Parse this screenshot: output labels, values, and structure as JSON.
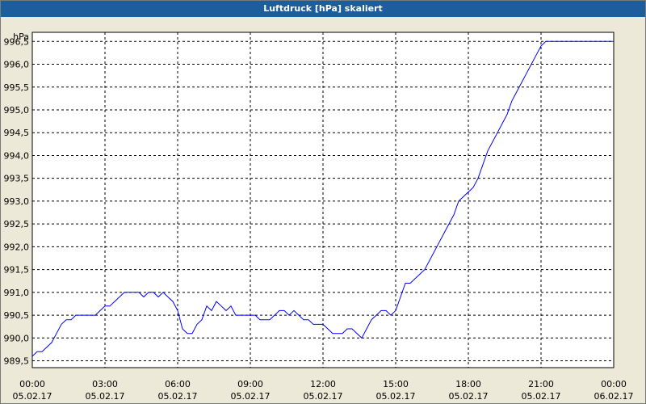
{
  "window": {
    "title": "Luftdruck [hPa] skaliert"
  },
  "colors": {
    "titlebar": "#1c5e9c",
    "plot_bg": "#ffffff",
    "line": "#0000ff",
    "grid": "#000000"
  },
  "chart_data": {
    "type": "line",
    "title": "Luftdruck [hPa] skaliert",
    "ylabel": "hPa",
    "xlabel": "",
    "ylim": [
      989.35,
      996.7
    ],
    "xlim": [
      0,
      24
    ],
    "grid": true,
    "y_ticks": [
      "989,5",
      "990,0",
      "990,5",
      "991,0",
      "991,5",
      "992,0",
      "992,5",
      "993,0",
      "993,5",
      "994,0",
      "994,5",
      "995,0",
      "995,5",
      "996,0",
      "996,5"
    ],
    "y_tick_values": [
      989.5,
      990.0,
      990.5,
      991.0,
      991.5,
      992.0,
      992.5,
      993.0,
      993.5,
      994.0,
      994.5,
      995.0,
      995.5,
      996.0,
      996.5
    ],
    "x_ticks": [
      {
        "time": "00:00",
        "date": "05.02.17"
      },
      {
        "time": "03:00",
        "date": "05.02.17"
      },
      {
        "time": "06:00",
        "date": "05.02.17"
      },
      {
        "time": "09:00",
        "date": "05.02.17"
      },
      {
        "time": "12:00",
        "date": "05.02.17"
      },
      {
        "time": "15:00",
        "date": "05.02.17"
      },
      {
        "time": "18:00",
        "date": "05.02.17"
      },
      {
        "time": "21:00",
        "date": "05.02.17"
      },
      {
        "time": "00:00",
        "date": "06.02.17"
      }
    ],
    "x_tick_hours": [
      0,
      3,
      6,
      9,
      12,
      15,
      18,
      21,
      24
    ],
    "series": [
      {
        "x": [
          0.0,
          0.2,
          0.4,
          0.6,
          0.8,
          1.0,
          1.2,
          1.4,
          1.6,
          1.8,
          2.0,
          2.2,
          2.4,
          2.6,
          2.8,
          3.0,
          3.2,
          3.4,
          3.6,
          3.8,
          4.0,
          4.2,
          4.4,
          4.6,
          4.8,
          5.0,
          5.2,
          5.4,
          5.6,
          5.8,
          6.0,
          6.2,
          6.4,
          6.6,
          6.8,
          7.0,
          7.2,
          7.4,
          7.6,
          7.8,
          8.0,
          8.2,
          8.4,
          8.6,
          8.8,
          9.0,
          9.2,
          9.4,
          9.6,
          9.8,
          10.0,
          10.2,
          10.4,
          10.6,
          10.8,
          11.0,
          11.2,
          11.4,
          11.6,
          11.8,
          12.0,
          12.2,
          12.4,
          12.6,
          12.8,
          13.0,
          13.2,
          13.4,
          13.6,
          13.8,
          14.0,
          14.2,
          14.4,
          14.6,
          14.8,
          15.0,
          15.2,
          15.4,
          15.6,
          15.8,
          16.0,
          16.2,
          16.4,
          16.6,
          16.8,
          17.0,
          17.2,
          17.4,
          17.6,
          17.8,
          18.0,
          18.2,
          18.4,
          18.6,
          18.8,
          19.0,
          19.2,
          19.4,
          19.6,
          19.8,
          20.0,
          20.2,
          20.4,
          20.6,
          20.8,
          21.0,
          21.2,
          21.4,
          21.6,
          21.8,
          22.0,
          22.2,
          22.4,
          22.6,
          22.8,
          23.0,
          23.2,
          23.4,
          23.6,
          23.8,
          24.0
        ],
        "values": [
          989.6,
          989.7,
          989.7,
          989.8,
          989.9,
          990.1,
          990.3,
          990.4,
          990.4,
          990.5,
          990.5,
          990.5,
          990.5,
          990.5,
          990.6,
          990.7,
          990.7,
          990.8,
          990.9,
          991.0,
          991.0,
          991.0,
          991.0,
          990.9,
          991.0,
          991.0,
          990.9,
          991.0,
          990.9,
          990.8,
          990.6,
          990.2,
          990.1,
          990.1,
          990.3,
          990.4,
          990.7,
          990.6,
          990.8,
          990.7,
          990.6,
          990.7,
          990.5,
          990.5,
          990.5,
          990.5,
          990.5,
          990.4,
          990.4,
          990.4,
          990.5,
          990.6,
          990.6,
          990.5,
          990.6,
          990.5,
          990.4,
          990.4,
          990.3,
          990.3,
          990.3,
          990.2,
          990.1,
          990.1,
          990.1,
          990.2,
          990.2,
          990.1,
          990.0,
          990.2,
          990.4,
          990.5,
          990.6,
          990.6,
          990.5,
          990.6,
          990.9,
          991.2,
          991.2,
          991.3,
          991.4,
          991.5,
          991.7,
          991.9,
          992.1,
          992.3,
          992.5,
          992.7,
          993.0,
          993.1,
          993.2,
          993.3,
          993.5,
          993.8,
          994.1,
          994.3,
          994.5,
          994.7,
          994.9,
          995.2,
          995.4,
          995.6,
          995.8,
          996.0,
          996.2,
          996.4,
          996.5,
          996.5,
          996.5,
          996.5,
          996.5,
          996.5,
          996.5,
          996.5,
          996.5,
          996.5,
          996.5,
          996.5,
          996.5,
          996.5,
          996.5
        ]
      }
    ]
  }
}
